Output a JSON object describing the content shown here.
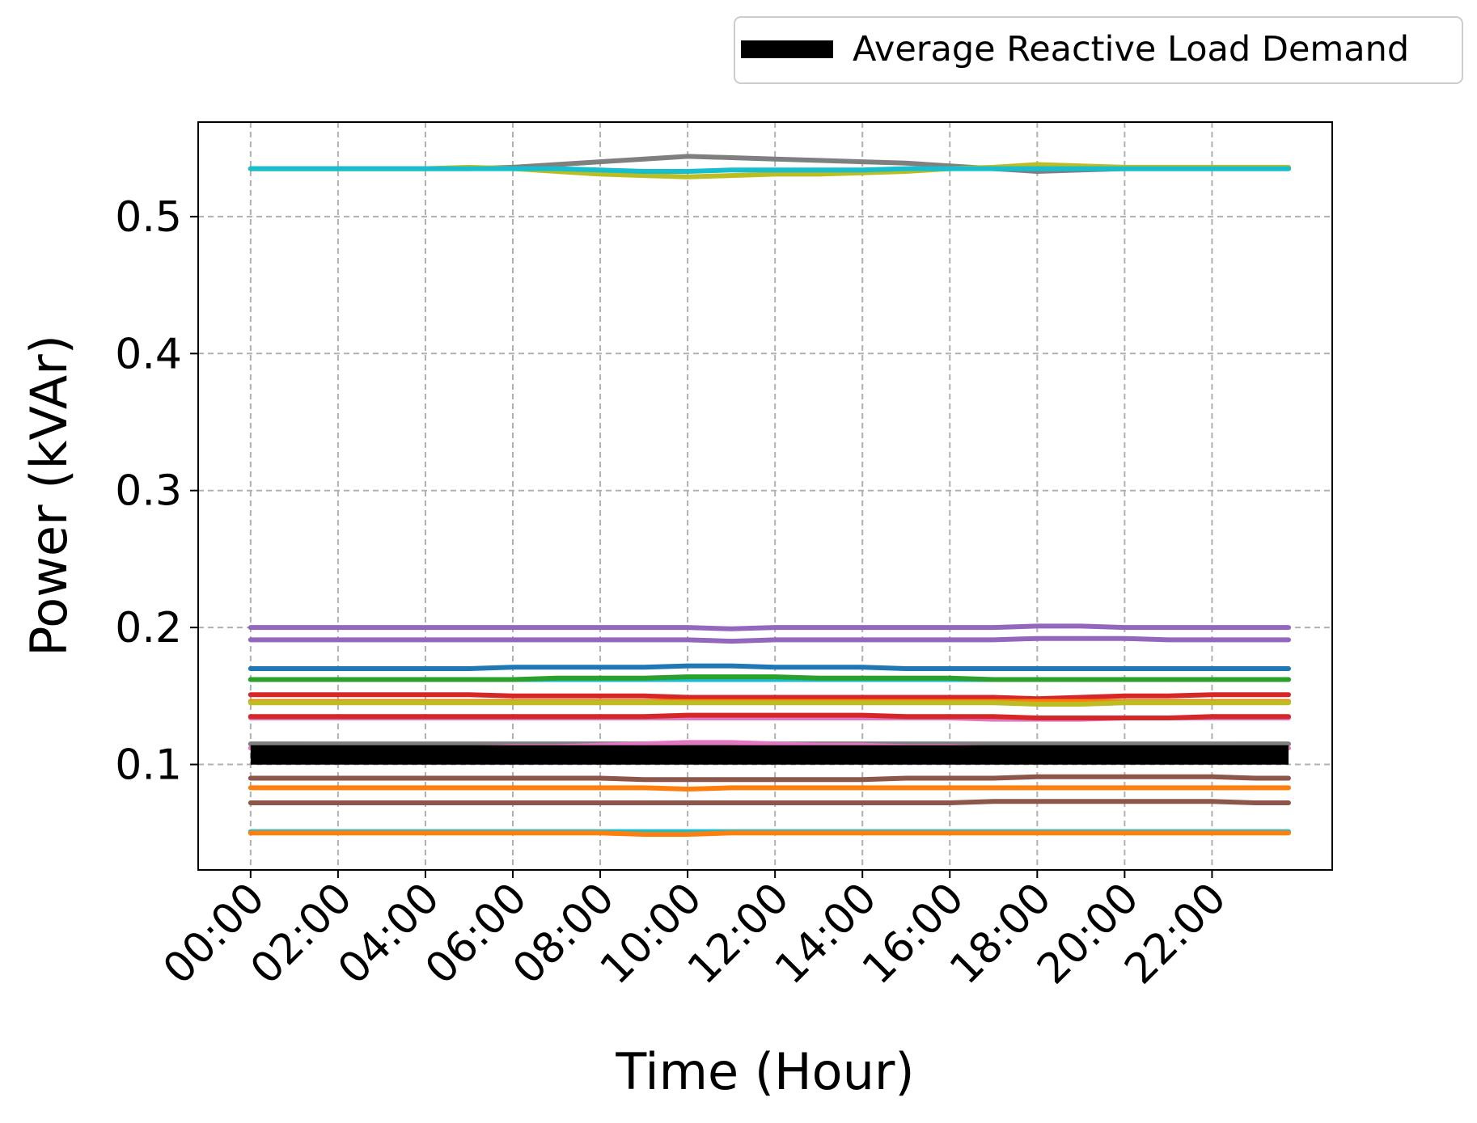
{
  "chart_data": {
    "type": "line",
    "title": "",
    "xlabel": "Time (Hour)",
    "ylabel": "Power (kVAr)",
    "x_tick_labels": [
      "00:00",
      "02:00",
      "04:00",
      "06:00",
      "08:00",
      "10:00",
      "12:00",
      "14:00",
      "16:00",
      "18:00",
      "20:00",
      "22:00"
    ],
    "x_ticks": [
      0,
      2,
      4,
      6,
      8,
      10,
      12,
      14,
      16,
      18,
      20,
      22
    ],
    "y_ticks": [
      0.1,
      0.2,
      0.3,
      0.4,
      0.5
    ],
    "y_tick_labels": [
      "0.1",
      "0.2",
      "0.3",
      "0.4",
      "0.5"
    ],
    "xlim": [
      -1.2,
      24.75
    ],
    "ylim": [
      0.023,
      0.569
    ],
    "grid": true,
    "legend": {
      "placement": "top-right, outside plot",
      "entries": [
        "Average Reactive Load Demand"
      ]
    },
    "x": [
      0,
      1,
      2,
      3,
      4,
      5,
      6,
      7,
      8,
      9,
      10,
      11,
      12,
      13,
      14,
      15,
      16,
      17,
      18,
      19,
      20,
      21,
      22,
      23,
      23.75
    ],
    "series": [
      {
        "color": "#7f7f7f",
        "values": [
          0.535,
          0.535,
          0.535,
          0.535,
          0.535,
          0.535,
          0.536,
          0.538,
          0.54,
          0.542,
          0.544,
          0.543,
          0.542,
          0.541,
          0.54,
          0.539,
          0.537,
          0.535,
          0.533,
          0.534,
          0.535,
          0.535,
          0.535,
          0.535,
          0.535
        ]
      },
      {
        "color": "#bcbd22",
        "values": [
          0.535,
          0.535,
          0.535,
          0.535,
          0.535,
          0.536,
          0.535,
          0.533,
          0.531,
          0.53,
          0.529,
          0.53,
          0.531,
          0.531,
          0.532,
          0.533,
          0.535,
          0.536,
          0.538,
          0.537,
          0.536,
          0.536,
          0.536,
          0.536,
          0.536
        ]
      },
      {
        "color": "#17becf",
        "values": [
          0.535,
          0.535,
          0.535,
          0.535,
          0.535,
          0.535,
          0.535,
          0.535,
          0.534,
          0.533,
          0.533,
          0.534,
          0.534,
          0.534,
          0.534,
          0.535,
          0.535,
          0.535,
          0.535,
          0.535,
          0.535,
          0.535,
          0.535,
          0.535,
          0.535
        ]
      },
      {
        "color": "#9467bd",
        "values": [
          0.2,
          0.2,
          0.2,
          0.2,
          0.2,
          0.2,
          0.2,
          0.2,
          0.2,
          0.2,
          0.2,
          0.199,
          0.2,
          0.2,
          0.2,
          0.2,
          0.2,
          0.2,
          0.201,
          0.201,
          0.2,
          0.2,
          0.2,
          0.2,
          0.2
        ]
      },
      {
        "color": "#9467bd",
        "values": [
          0.191,
          0.191,
          0.191,
          0.191,
          0.191,
          0.191,
          0.191,
          0.191,
          0.191,
          0.191,
          0.191,
          0.19,
          0.191,
          0.191,
          0.191,
          0.191,
          0.191,
          0.191,
          0.192,
          0.192,
          0.192,
          0.191,
          0.191,
          0.191,
          0.191
        ]
      },
      {
        "color": "#1f77b4",
        "values": [
          0.17,
          0.17,
          0.17,
          0.17,
          0.17,
          0.17,
          0.171,
          0.171,
          0.171,
          0.171,
          0.172,
          0.172,
          0.171,
          0.171,
          0.171,
          0.17,
          0.17,
          0.17,
          0.17,
          0.17,
          0.17,
          0.17,
          0.17,
          0.17,
          0.17
        ]
      },
      {
        "color": "#17becf",
        "values": [
          0.162,
          0.162,
          0.162,
          0.162,
          0.162,
          0.162,
          0.162,
          0.162,
          0.162,
          0.162,
          0.162,
          0.162,
          0.162,
          0.162,
          0.162,
          0.162,
          0.162,
          0.162,
          0.162,
          0.162,
          0.162,
          0.162,
          0.162,
          0.162,
          0.162
        ]
      },
      {
        "color": "#2ca02c",
        "values": [
          0.162,
          0.162,
          0.162,
          0.162,
          0.162,
          0.162,
          0.162,
          0.163,
          0.163,
          0.163,
          0.164,
          0.164,
          0.164,
          0.163,
          0.163,
          0.163,
          0.163,
          0.162,
          0.162,
          0.162,
          0.162,
          0.162,
          0.162,
          0.162,
          0.162
        ]
      },
      {
        "color": "#d62728",
        "values": [
          0.151,
          0.151,
          0.151,
          0.151,
          0.151,
          0.151,
          0.15,
          0.15,
          0.15,
          0.15,
          0.149,
          0.149,
          0.149,
          0.149,
          0.149,
          0.149,
          0.149,
          0.149,
          0.148,
          0.149,
          0.15,
          0.15,
          0.151,
          0.151,
          0.151
        ]
      },
      {
        "color": "#ff7f0e",
        "values": [
          0.146,
          0.146,
          0.146,
          0.146,
          0.146,
          0.146,
          0.146,
          0.146,
          0.146,
          0.146,
          0.146,
          0.146,
          0.146,
          0.146,
          0.146,
          0.146,
          0.146,
          0.146,
          0.146,
          0.146,
          0.146,
          0.146,
          0.146,
          0.146,
          0.146
        ]
      },
      {
        "color": "#bcbd22",
        "values": [
          0.145,
          0.145,
          0.145,
          0.145,
          0.145,
          0.145,
          0.145,
          0.145,
          0.145,
          0.145,
          0.145,
          0.145,
          0.145,
          0.145,
          0.145,
          0.145,
          0.145,
          0.145,
          0.144,
          0.144,
          0.145,
          0.145,
          0.145,
          0.145,
          0.145
        ]
      },
      {
        "color": "#e377c2",
        "values": [
          0.134,
          0.134,
          0.134,
          0.134,
          0.134,
          0.134,
          0.134,
          0.134,
          0.134,
          0.134,
          0.134,
          0.134,
          0.134,
          0.134,
          0.134,
          0.134,
          0.134,
          0.133,
          0.133,
          0.133,
          0.134,
          0.134,
          0.134,
          0.134,
          0.134
        ]
      },
      {
        "color": "#d62728",
        "values": [
          0.135,
          0.135,
          0.135,
          0.135,
          0.135,
          0.135,
          0.135,
          0.135,
          0.135,
          0.135,
          0.136,
          0.136,
          0.136,
          0.136,
          0.136,
          0.135,
          0.135,
          0.135,
          0.134,
          0.134,
          0.134,
          0.134,
          0.135,
          0.135,
          0.135
        ]
      },
      {
        "color": "#7f7f7f",
        "values": [
          0.115,
          0.115,
          0.115,
          0.115,
          0.115,
          0.115,
          0.115,
          0.115,
          0.115,
          0.115,
          0.115,
          0.115,
          0.115,
          0.115,
          0.115,
          0.115,
          0.115,
          0.115,
          0.115,
          0.115,
          0.115,
          0.115,
          0.115,
          0.115,
          0.115
        ]
      },
      {
        "color": "#e377c2",
        "values": [
          0.112,
          0.112,
          0.112,
          0.112,
          0.112,
          0.112,
          0.113,
          0.113,
          0.114,
          0.115,
          0.116,
          0.116,
          0.115,
          0.114,
          0.114,
          0.113,
          0.113,
          0.112,
          0.112,
          0.112,
          0.112,
          0.112,
          0.112,
          0.112,
          0.112
        ]
      },
      {
        "color": "#8c564b",
        "values": [
          0.09,
          0.09,
          0.09,
          0.09,
          0.09,
          0.09,
          0.09,
          0.09,
          0.09,
          0.089,
          0.089,
          0.089,
          0.089,
          0.089,
          0.089,
          0.09,
          0.09,
          0.09,
          0.091,
          0.091,
          0.091,
          0.091,
          0.091,
          0.09,
          0.09
        ]
      },
      {
        "color": "#ff7f0e",
        "values": [
          0.083,
          0.083,
          0.083,
          0.083,
          0.083,
          0.083,
          0.083,
          0.083,
          0.083,
          0.083,
          0.082,
          0.083,
          0.083,
          0.083,
          0.083,
          0.083,
          0.083,
          0.083,
          0.083,
          0.083,
          0.083,
          0.083,
          0.083,
          0.083,
          0.083
        ]
      },
      {
        "color": "#8c564b",
        "values": [
          0.072,
          0.072,
          0.072,
          0.072,
          0.072,
          0.072,
          0.072,
          0.072,
          0.072,
          0.072,
          0.072,
          0.072,
          0.072,
          0.072,
          0.072,
          0.072,
          0.072,
          0.073,
          0.073,
          0.073,
          0.073,
          0.073,
          0.073,
          0.072,
          0.072
        ]
      },
      {
        "color": "#17becf",
        "values": [
          0.051,
          0.051,
          0.051,
          0.051,
          0.051,
          0.051,
          0.051,
          0.051,
          0.051,
          0.051,
          0.051,
          0.051,
          0.051,
          0.051,
          0.051,
          0.051,
          0.051,
          0.051,
          0.051,
          0.051,
          0.051,
          0.051,
          0.051,
          0.051,
          0.051
        ]
      },
      {
        "color": "#ff7f0e",
        "values": [
          0.05,
          0.05,
          0.05,
          0.05,
          0.05,
          0.05,
          0.05,
          0.05,
          0.05,
          0.049,
          0.049,
          0.05,
          0.05,
          0.05,
          0.05,
          0.05,
          0.05,
          0.05,
          0.05,
          0.05,
          0.05,
          0.05,
          0.05,
          0.05,
          0.05
        ]
      },
      {
        "name": "Average Reactive Load Demand",
        "color": "#000000",
        "values": [
          0.107,
          0.107,
          0.107,
          0.107,
          0.107,
          0.107,
          0.107,
          0.107,
          0.107,
          0.107,
          0.107,
          0.107,
          0.107,
          0.107,
          0.107,
          0.107,
          0.107,
          0.107,
          0.107,
          0.107,
          0.107,
          0.107,
          0.107,
          0.107,
          0.107
        ]
      }
    ]
  }
}
